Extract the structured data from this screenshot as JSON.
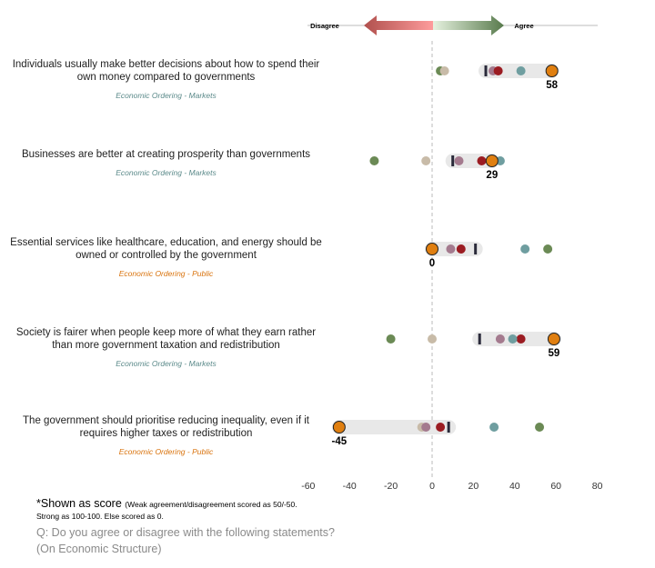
{
  "chart_data": {
    "type": "dot",
    "scale_labels": {
      "left": "Disagree",
      "right": "Agree"
    },
    "xlim": [
      -60,
      80
    ],
    "xticks": [
      -60,
      -40,
      -20,
      0,
      20,
      40,
      60,
      80
    ],
    "tick_labels": [
      "-60",
      "-40",
      "-20",
      "0",
      "20",
      "40",
      "60",
      "80"
    ],
    "reference_line": 0,
    "categories": [
      {
        "text": "Individuals usually make better decisions about how to spend their own money compared to governments",
        "tag": "Economic Ordering - Markets",
        "tag_color": "#5b8a8a"
      },
      {
        "text": "Businesses are better at creating prosperity than governments",
        "tag": "Economic Ordering - Markets",
        "tag_color": "#5b8a8a"
      },
      {
        "text": "Essential services like healthcare, education, and energy should be owned or controlled by the government",
        "tag": "Economic Ordering - Public",
        "tag_color": "#d9730d"
      },
      {
        "text": "Society is fairer when people keep more of what they earn rather than more government taxation and redistribution",
        "tag": "Economic Ordering - Markets",
        "tag_color": "#5b8a8a"
      },
      {
        "text": "The government should prioritise reducing inequality, even if it requires higher taxes or redistribution",
        "tag": "Economic Ordering - Public",
        "tag_color": "#d9730d"
      }
    ],
    "series": [
      {
        "color": "#6b8a55",
        "values": [
          4,
          -28,
          56,
          -20,
          52
        ]
      },
      {
        "color": "#c8bba8",
        "values": [
          6,
          -3,
          null,
          0,
          -5
        ]
      },
      {
        "color": "#a47a8e",
        "values": [
          29.5,
          13,
          9,
          33,
          -3
        ]
      },
      {
        "color": "#9b1c22",
        "values": [
          32,
          24,
          14,
          43,
          4
        ]
      },
      {
        "color": "#6f9ea0",
        "values": [
          43,
          33,
          45,
          39,
          30
        ]
      },
      {
        "color": "#e07f10",
        "values": [
          58,
          29,
          0,
          59,
          -45
        ],
        "highlight": true
      }
    ],
    "bar_marker": {
      "color": "#2a2a3a",
      "values": [
        26,
        10,
        21,
        23,
        8
      ]
    },
    "value_labels": [
      "58",
      "29",
      "0",
      "59",
      "-45"
    ]
  },
  "footer": {
    "note_title": "*Shown as score",
    "note_paren": "(Weak agreement/disagreement scored as 50/-50.",
    "note_line2": "Strong as 100-100. Else scored as 0.",
    "question": "Q: Do you agree or disagree with the following statements?",
    "question_sub": "(On Economic Structure)"
  }
}
